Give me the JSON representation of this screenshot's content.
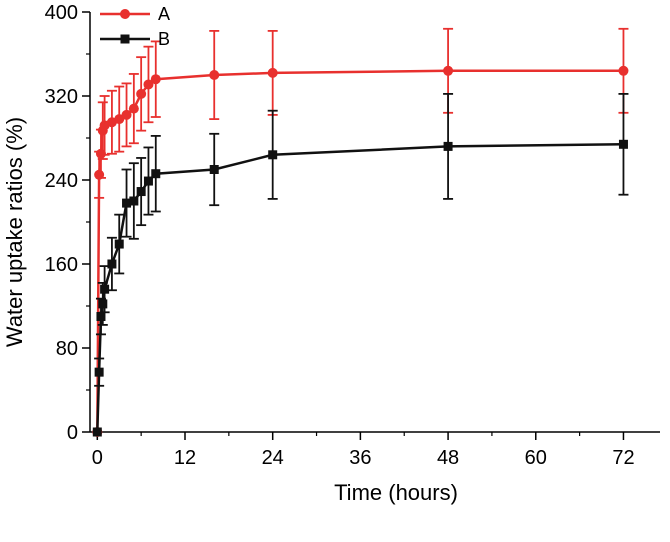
{
  "chart_data": {
    "type": "line",
    "title": "",
    "xlabel": "Time (hours)",
    "ylabel": "Water uptake ratios (%)",
    "xlim": [
      -1,
      77
    ],
    "ylim": [
      0,
      400
    ],
    "xticks": [
      0,
      12,
      24,
      36,
      48,
      60,
      72
    ],
    "yticks": [
      0,
      80,
      160,
      240,
      320,
      400
    ],
    "xtick_labels": [
      "0",
      "12",
      "24",
      "36",
      "48",
      "60",
      "72"
    ],
    "ytick_labels": [
      "0",
      "80",
      "160",
      "240",
      "320",
      "400"
    ],
    "legend_position": "top-left",
    "grid": false,
    "error_bars": true,
    "series": [
      {
        "name": "A",
        "color": "#e8302e",
        "marker": "circle",
        "x": [
          0,
          0.25,
          0.5,
          0.75,
          1,
          2,
          3,
          4,
          5,
          6,
          7,
          8,
          16,
          24,
          48,
          72
        ],
        "y": [
          0,
          245,
          265,
          287,
          292,
          295,
          298,
          302,
          308,
          322,
          331,
          336,
          340,
          342,
          344,
          344
        ],
        "err": [
          0,
          22,
          23,
          27,
          28,
          30,
          31,
          30,
          33,
          35,
          36,
          36,
          42,
          40,
          40,
          40
        ]
      },
      {
        "name": "B",
        "color": "#111111",
        "marker": "square",
        "x": [
          0,
          0.25,
          0.5,
          0.75,
          1,
          2,
          3,
          4,
          5,
          6,
          7,
          8,
          16,
          24,
          48,
          72
        ],
        "y": [
          0,
          57,
          110,
          122,
          136,
          160,
          179,
          218,
          220,
          229,
          239,
          246,
          250,
          264,
          272,
          274
        ],
        "err": [
          0,
          13,
          17,
          20,
          22,
          25,
          28,
          32,
          36,
          32,
          32,
          36,
          34,
          42,
          50,
          48
        ]
      }
    ]
  }
}
